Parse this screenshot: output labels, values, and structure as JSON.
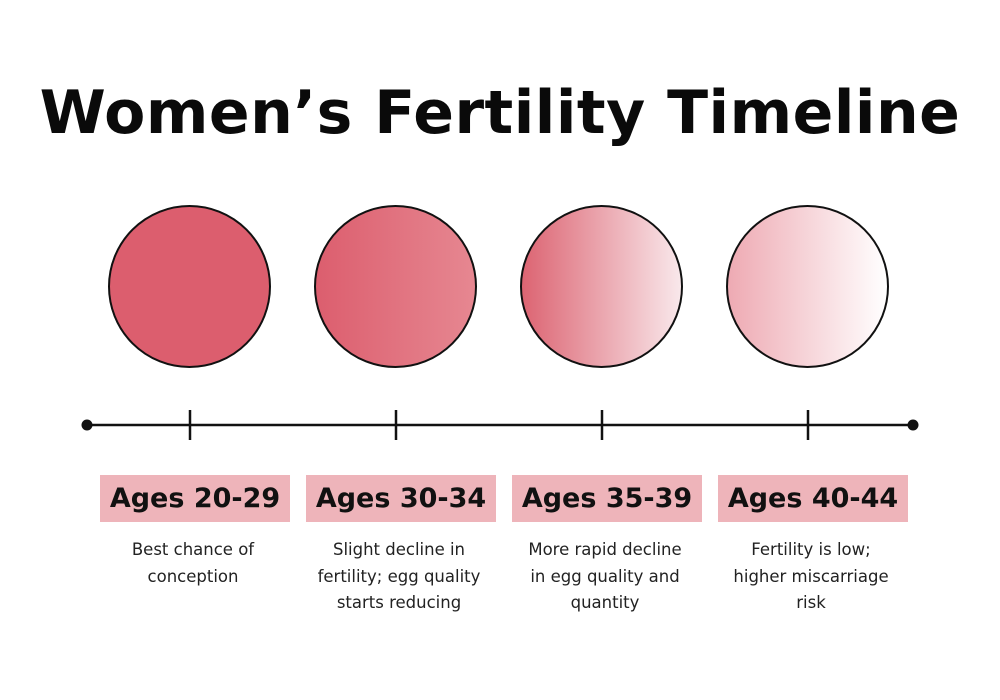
{
  "title": "Women’s Fertility Timeline",
  "colors": {
    "dark_pink": "#dc5e6e",
    "light_pink": "#ebb3b9",
    "label_bg": "#eeb4ba",
    "white": "#ffffff",
    "line": "#111111"
  },
  "stages": [
    {
      "ages": "Ages 20-29",
      "desc_lines": [
        "Best chance of",
        "conception"
      ],
      "fill_gradient": [
        "#dc5e6e",
        "#dc5e6e"
      ]
    },
    {
      "ages": "Ages 30-34",
      "desc_lines": [
        "Slight decline in",
        "fertility; egg quality",
        "starts reducing"
      ],
      "fill_gradient": [
        "#dc5e6e",
        "#e68791"
      ]
    },
    {
      "ages": "Ages 35-39",
      "desc_lines": [
        "More rapid decline",
        "in egg quality and",
        "quantity"
      ],
      "fill_gradient": [
        "#dc6472",
        "#f9e8eb"
      ]
    },
    {
      "ages": "Ages 40-44",
      "desc_lines": [
        "Fertility is low;",
        "higher miscarriage",
        "risk"
      ],
      "fill_gradient": [
        "#eeaab3",
        "#ffffff"
      ]
    }
  ]
}
